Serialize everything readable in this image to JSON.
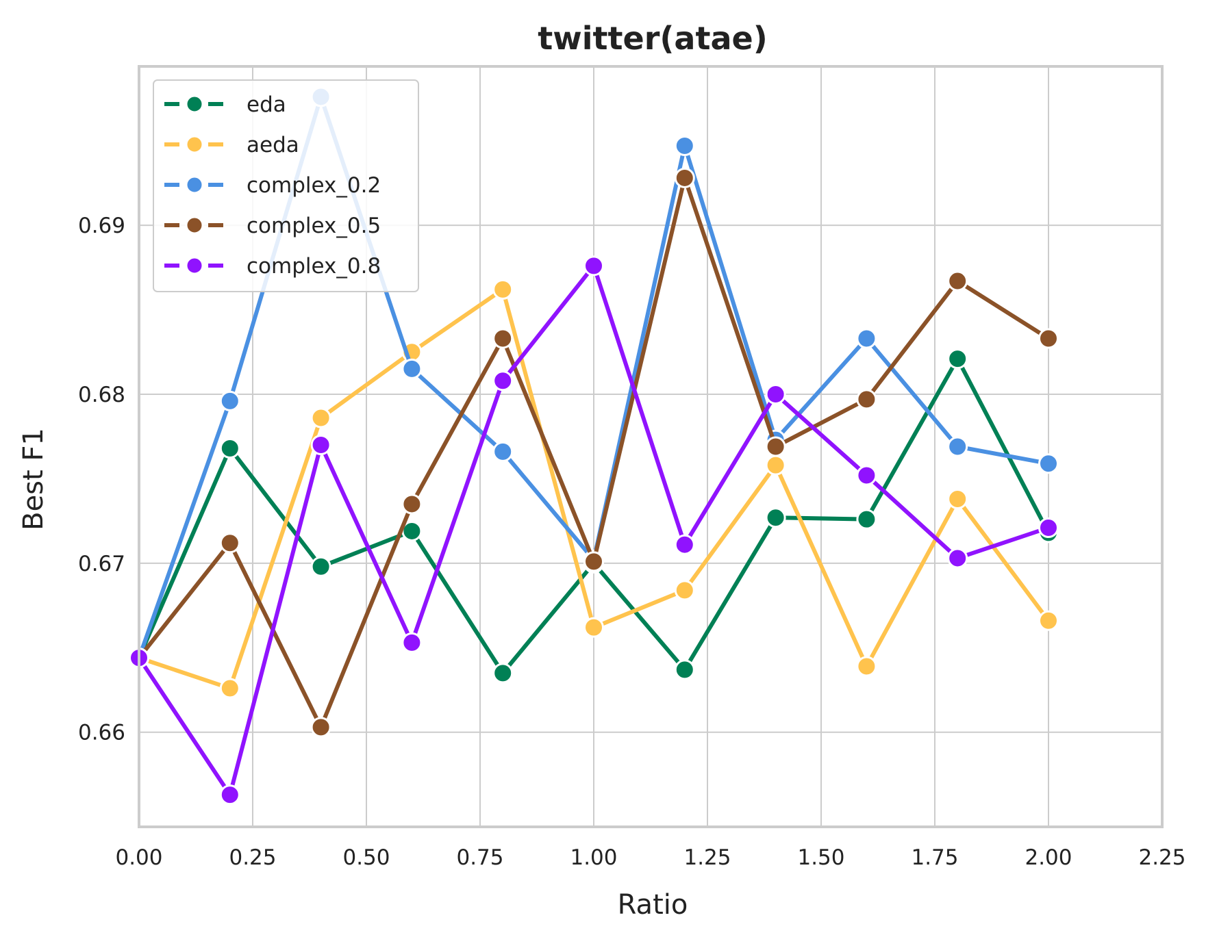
{
  "chart_data": {
    "type": "line",
    "title": "twitter(atae)",
    "xlabel": "Ratio",
    "ylabel": "Best F1",
    "xlim": [
      0.0,
      2.25
    ],
    "ylim": [
      0.6544,
      0.6994
    ],
    "xticks": [
      0.0,
      0.25,
      0.5,
      0.75,
      1.0,
      1.25,
      1.5,
      1.75,
      2.0,
      2.25
    ],
    "xtick_labels": [
      "0.00",
      "0.25",
      "0.50",
      "0.75",
      "1.00",
      "1.25",
      "1.50",
      "1.75",
      "2.00",
      "2.25"
    ],
    "yticks": [
      0.66,
      0.67,
      0.68,
      0.69
    ],
    "ytick_labels": [
      "0.66",
      "0.67",
      "0.68",
      "0.69"
    ],
    "grid": true,
    "legend_position": "upper-left",
    "x": [
      0.0,
      0.2,
      0.4,
      0.6,
      0.8,
      1.0,
      1.2,
      1.4,
      1.6,
      1.8,
      2.0
    ],
    "series": [
      {
        "name": "eda",
        "color": "#008055",
        "values": [
          0.6644,
          0.6768,
          0.6698,
          0.6719,
          0.6635,
          0.67,
          0.6637,
          0.6727,
          0.6726,
          0.6821,
          0.6718
        ]
      },
      {
        "name": "aeda",
        "color": "#FFC34D",
        "values": [
          0.6644,
          0.6626,
          0.6786,
          0.6825,
          0.6862,
          0.6662,
          0.6684,
          0.6758,
          0.6639,
          0.6738,
          0.6666
        ]
      },
      {
        "name": "complex_0.2",
        "color": "#4A90E2",
        "values": [
          0.6644,
          0.6796,
          0.6976,
          0.6815,
          0.6766,
          0.6702,
          0.6947,
          0.6773,
          0.6833,
          0.6769,
          0.6759
        ]
      },
      {
        "name": "complex_0.5",
        "color": "#8B5228",
        "values": [
          0.6644,
          0.6712,
          0.6603,
          0.6735,
          0.6833,
          0.6701,
          0.6928,
          0.6769,
          0.6797,
          0.6867,
          0.6833
        ]
      },
      {
        "name": "complex_0.8",
        "color": "#9013FE",
        "values": [
          0.6644,
          0.6563,
          0.677,
          0.6653,
          0.6808,
          0.6876,
          0.6711,
          0.68,
          0.6752,
          0.6703,
          0.6721
        ]
      }
    ]
  }
}
